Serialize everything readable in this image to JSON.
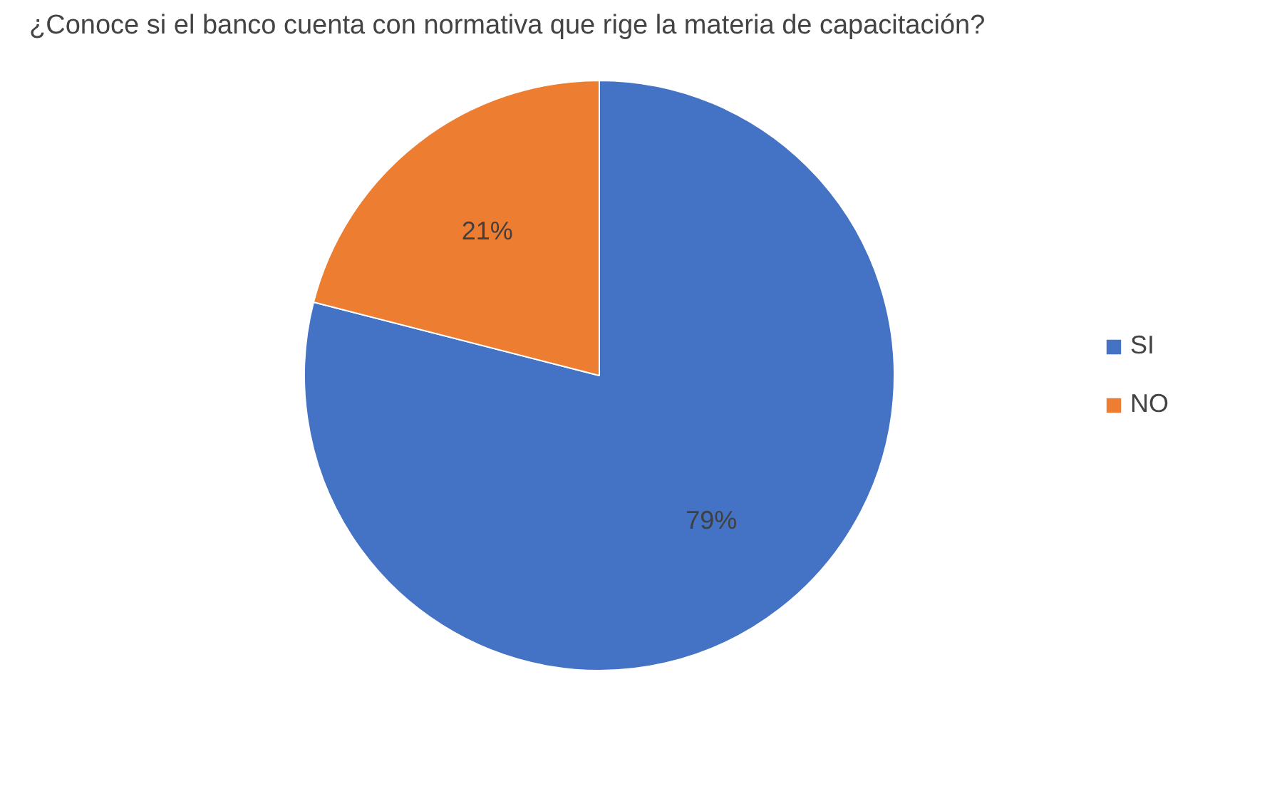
{
  "chart_data": {
    "type": "pie",
    "title": "¿Conoce si el banco cuenta con normativa que rige la materia de capacitación?",
    "categories": [
      "SI",
      "NO"
    ],
    "values": [
      79,
      21
    ],
    "colors": [
      "#4472c4",
      "#ed7d31"
    ],
    "value_labels": [
      "79%",
      "21%"
    ],
    "legend": "right"
  }
}
